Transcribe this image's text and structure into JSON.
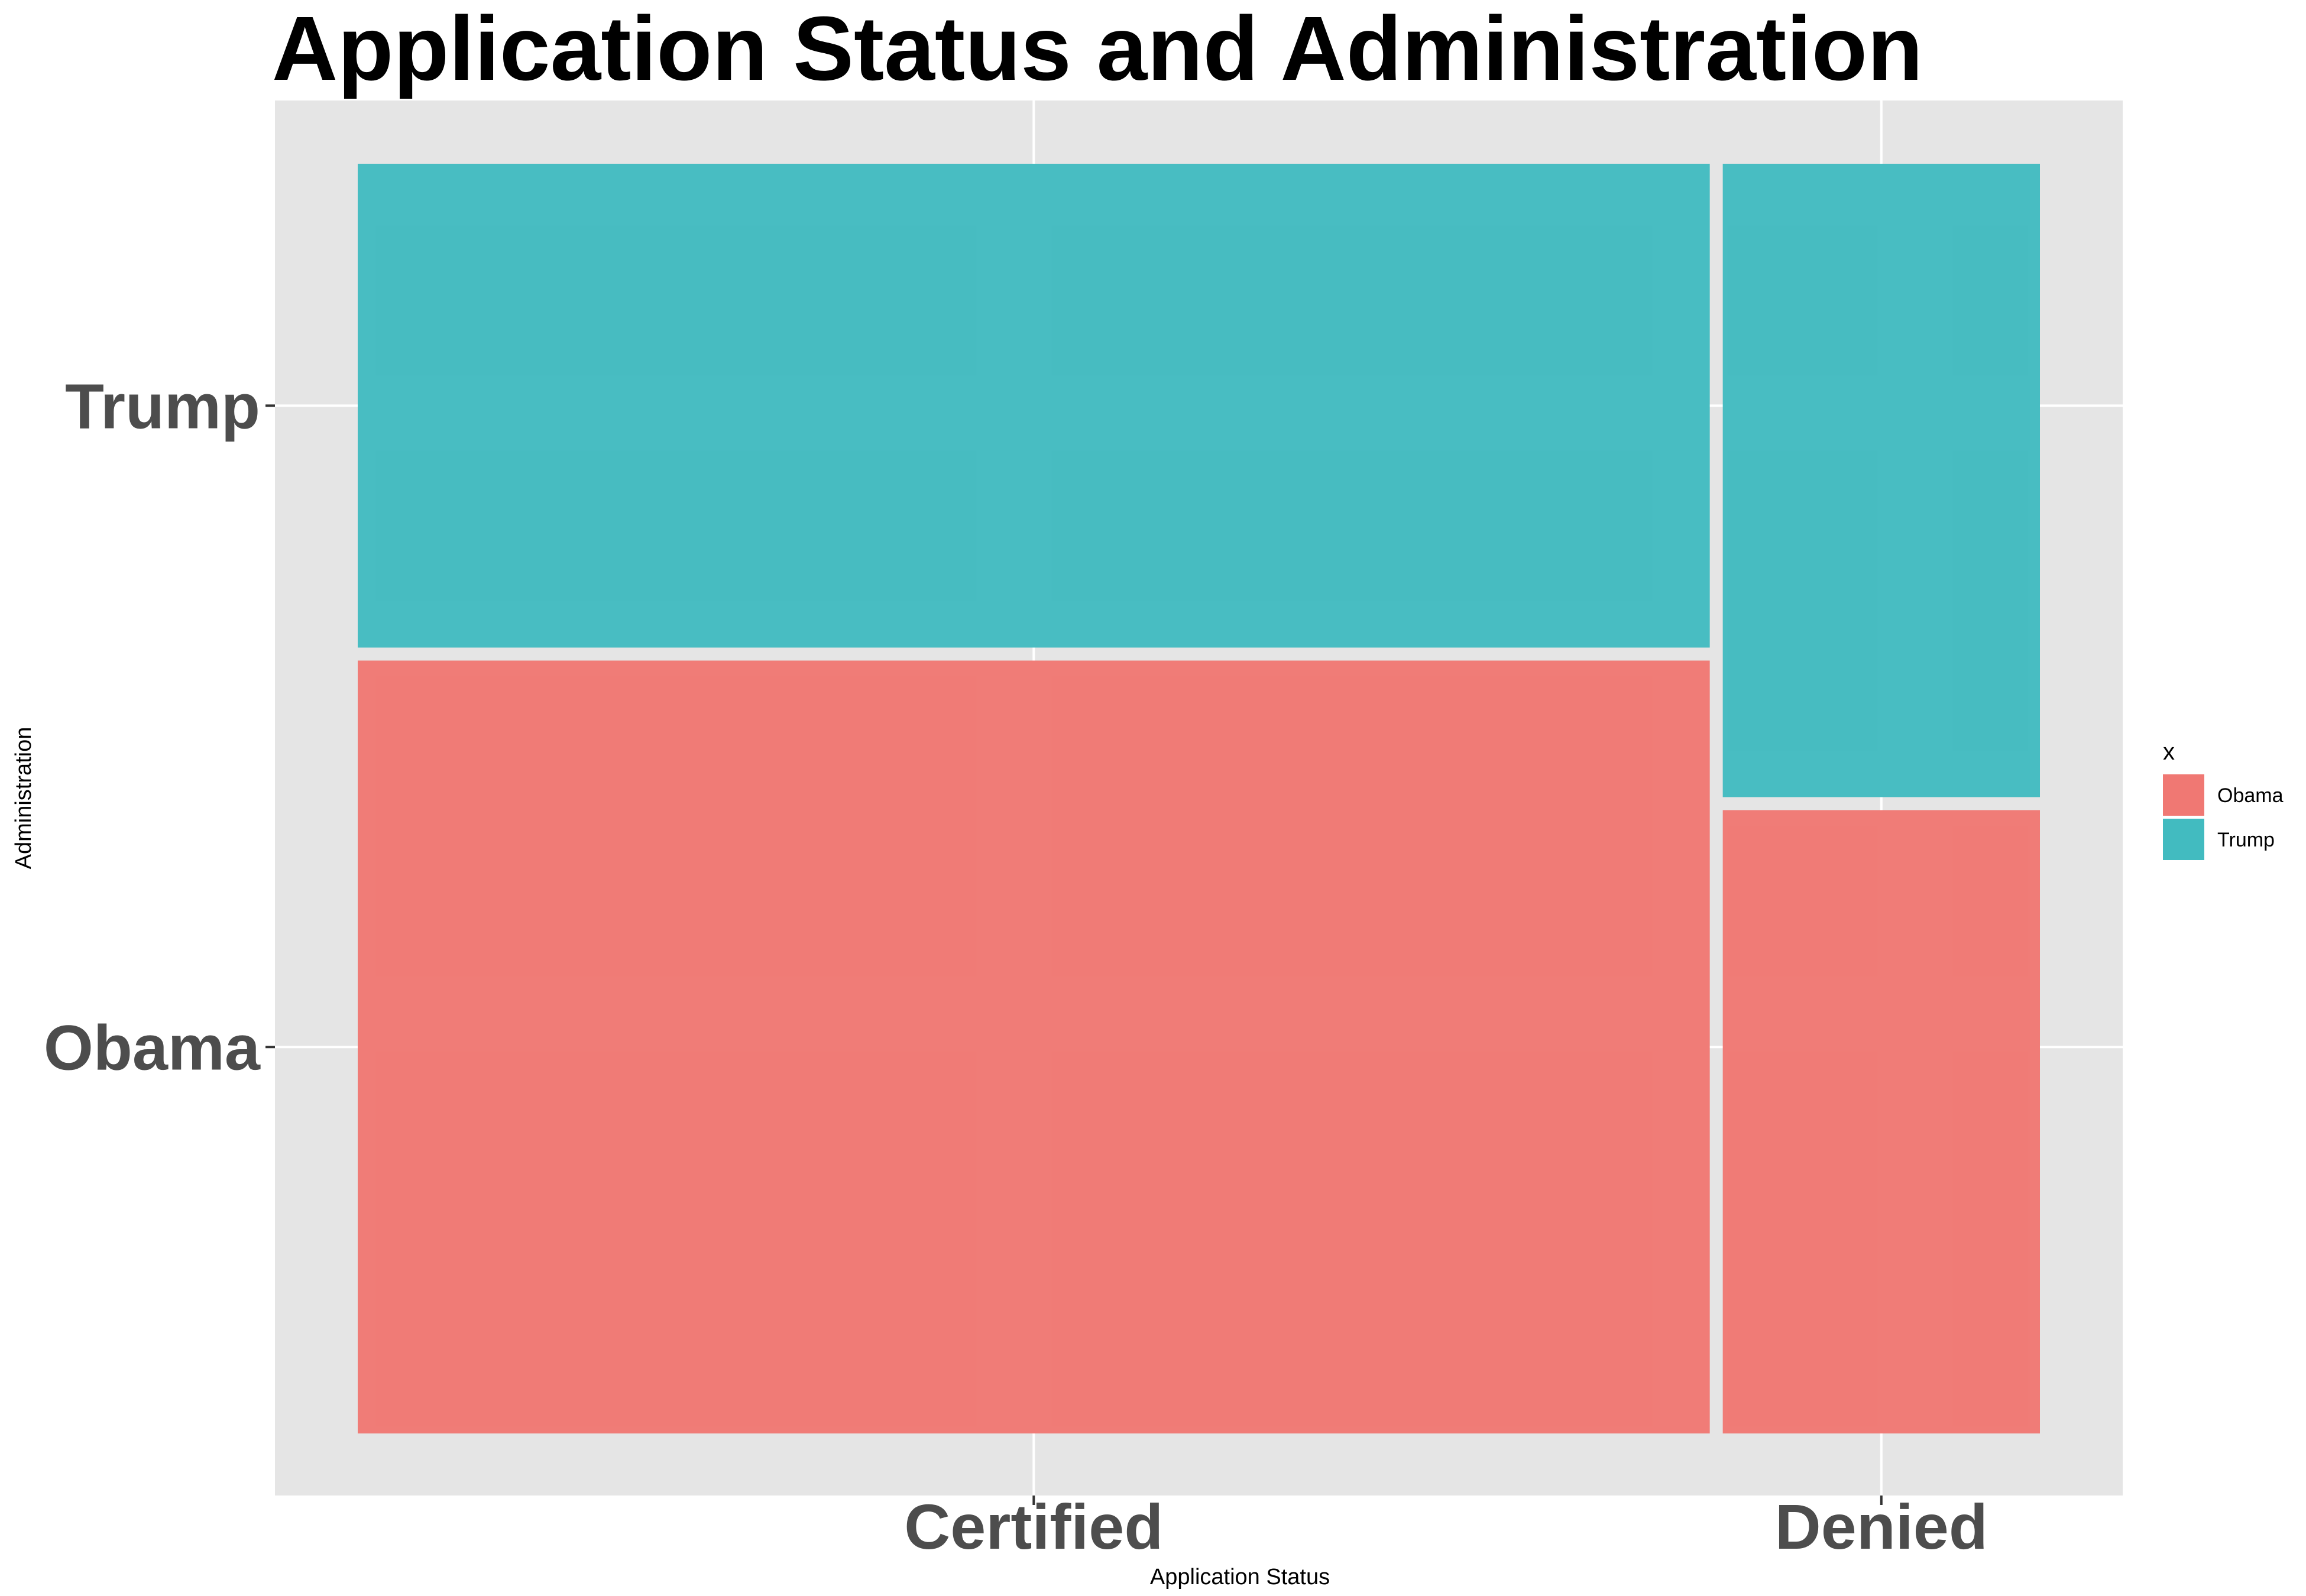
{
  "chart_data": {
    "type": "mosaic",
    "title": "Application Status and Administration",
    "xlabel": "Application Status",
    "ylabel": "Administration",
    "categories": [
      "Certified",
      "Denied"
    ],
    "category_widths": [
      0.81,
      0.19
    ],
    "series": [
      {
        "name": "Obama",
        "values": [
          0.615,
          0.496
        ]
      },
      {
        "name": "Trump",
        "values": [
          0.385,
          0.504
        ]
      }
    ],
    "y_tick_labels": [
      "Obama",
      "Trump"
    ],
    "legend": {
      "title": "x",
      "position": "right",
      "entries": [
        "Obama",
        "Trump"
      ]
    },
    "colors": {
      "Obama": "#F07873",
      "Trump": "#42BBC0",
      "panel": "#E5E5E5",
      "grid": "#FFFFFF"
    },
    "grid": true
  }
}
